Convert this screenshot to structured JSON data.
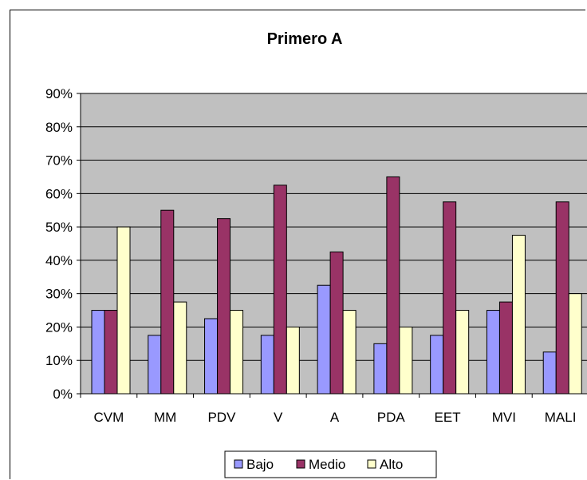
{
  "chart_data": {
    "type": "bar",
    "title": "Primero A",
    "xlabel": "",
    "ylabel": "",
    "categories": [
      "CVM",
      "MM",
      "PDV",
      "V",
      "A",
      "PDA",
      "EET",
      "MVI",
      "MALI"
    ],
    "series": [
      {
        "name": "Bajo",
        "color": "#9999ff",
        "values": [
          25,
          17.5,
          22.5,
          17.5,
          32.5,
          15,
          17.5,
          25,
          12.5
        ]
      },
      {
        "name": "Medio",
        "color": "#993366",
        "values": [
          25,
          55,
          52.5,
          62.5,
          42.5,
          65,
          57.5,
          27.5,
          57.5
        ]
      },
      {
        "name": "Alto",
        "color": "#ffffcc",
        "values": [
          50,
          27.5,
          25,
          20,
          25,
          20,
          25,
          47.5,
          30
        ]
      }
    ],
    "ylim": [
      0,
      90
    ],
    "yticks": [
      "0%",
      "10%",
      "20%",
      "30%",
      "40%",
      "50%",
      "60%",
      "70%",
      "80%",
      "90%"
    ],
    "grid": true,
    "plot_background": "#c0c0c0",
    "legend_position": "bottom"
  }
}
